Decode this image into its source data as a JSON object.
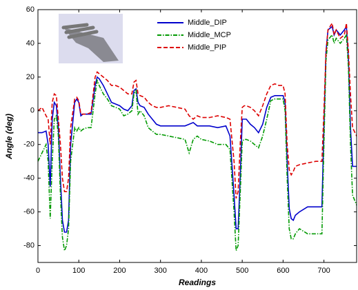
{
  "chart_data": {
    "type": "line",
    "xlabel": "Readings",
    "ylabel": "Angle (deg)",
    "xlim": [
      0,
      780
    ],
    "xticks": [
      0,
      100,
      200,
      300,
      400,
      500,
      600,
      700
    ],
    "ylim": [
      -90,
      60
    ],
    "yticks": [
      -80,
      -60,
      -40,
      -20,
      0,
      20,
      40,
      60
    ],
    "legend": "top",
    "x": [
      0,
      10,
      20,
      25,
      30,
      35,
      40,
      45,
      50,
      55,
      60,
      65,
      70,
      75,
      80,
      90,
      95,
      100,
      105,
      110,
      120,
      130,
      140,
      145,
      150,
      160,
      170,
      180,
      190,
      200,
      210,
      220,
      230,
      235,
      240,
      245,
      250,
      260,
      270,
      280,
      290,
      300,
      320,
      340,
      360,
      370,
      380,
      390,
      400,
      420,
      440,
      460,
      470,
      480,
      485,
      490,
      495,
      500,
      505,
      510,
      520,
      530,
      540,
      550,
      560,
      570,
      580,
      590,
      600,
      605,
      610,
      615,
      620,
      625,
      630,
      640,
      660,
      680,
      695,
      700,
      705,
      710,
      720,
      725,
      730,
      740,
      750,
      755,
      760,
      765,
      770,
      780
    ],
    "series": [
      {
        "name": "Middle_DIP",
        "color": "#0000cc",
        "style": "solid",
        "values": [
          -13,
          -13,
          -12,
          -20,
          -45,
          -5,
          5,
          3,
          -10,
          -40,
          -65,
          -72,
          -72,
          -65,
          -20,
          5,
          7,
          5,
          -3,
          -2,
          -2,
          -2,
          15,
          20,
          19,
          15,
          10,
          5,
          4,
          3,
          1,
          0,
          3,
          12,
          13,
          5,
          3,
          2,
          -2,
          -5,
          -8,
          -9,
          -9,
          -9,
          -9,
          -8,
          -7,
          -9,
          -9,
          -9,
          -10,
          -9,
          -15,
          -50,
          -70,
          -70,
          -40,
          -5,
          -5,
          -5,
          -8,
          -10,
          -13,
          -8,
          2,
          8,
          9,
          9,
          9,
          5,
          -30,
          -58,
          -64,
          -65,
          -62,
          -60,
          -57,
          -57,
          -57,
          -10,
          35,
          48,
          50,
          45,
          48,
          45,
          48,
          50,
          30,
          -10,
          -33,
          -33
        ]
      },
      {
        "name": "Middle_MCP",
        "color": "#009900",
        "style": "dashdot",
        "values": [
          -30,
          -25,
          -20,
          -30,
          -64,
          -30,
          -5,
          -3,
          -15,
          -50,
          -75,
          -83,
          -80,
          -70,
          -30,
          -10,
          -12,
          -10,
          -12,
          -11,
          -10,
          -10,
          10,
          18,
          15,
          10,
          7,
          3,
          2,
          1,
          -3,
          -2,
          0,
          10,
          12,
          -2,
          0,
          -3,
          -10,
          -12,
          -14,
          -14,
          -15,
          -16,
          -17,
          -25,
          -17,
          -15,
          -17,
          -18,
          -20,
          -20,
          -23,
          -60,
          -83,
          -80,
          -50,
          -18,
          -17,
          -17,
          -18,
          -20,
          -22,
          -15,
          -5,
          6,
          7,
          7,
          7,
          0,
          -40,
          -70,
          -76,
          -76,
          -73,
          -70,
          -73,
          -73,
          -73,
          -20,
          30,
          42,
          45,
          40,
          43,
          40,
          43,
          45,
          25,
          -20,
          -50,
          -56
        ]
      },
      {
        "name": "Middle_PIP",
        "color": "#dd0000",
        "style": "dashed",
        "values": [
          0,
          2,
          -3,
          -5,
          -20,
          5,
          10,
          9,
          -5,
          -20,
          -40,
          -48,
          -48,
          -40,
          -10,
          7,
          8,
          6,
          -2,
          -2,
          -2,
          -1,
          20,
          23,
          22,
          20,
          18,
          15,
          15,
          14,
          12,
          10,
          10,
          17,
          18,
          10,
          9,
          8,
          5,
          3,
          2,
          2,
          3,
          2,
          1,
          -3,
          -5,
          -3,
          -4,
          -4,
          -3,
          -4,
          -5,
          -30,
          -52,
          -48,
          -20,
          2,
          3,
          3,
          2,
          0,
          -3,
          3,
          10,
          15,
          16,
          15,
          15,
          10,
          -20,
          -35,
          -38,
          -36,
          -33,
          -32,
          -31,
          -30,
          -30,
          0,
          35,
          48,
          52,
          45,
          48,
          43,
          45,
          52,
          35,
          10,
          -10,
          -15
        ]
      }
    ]
  }
}
